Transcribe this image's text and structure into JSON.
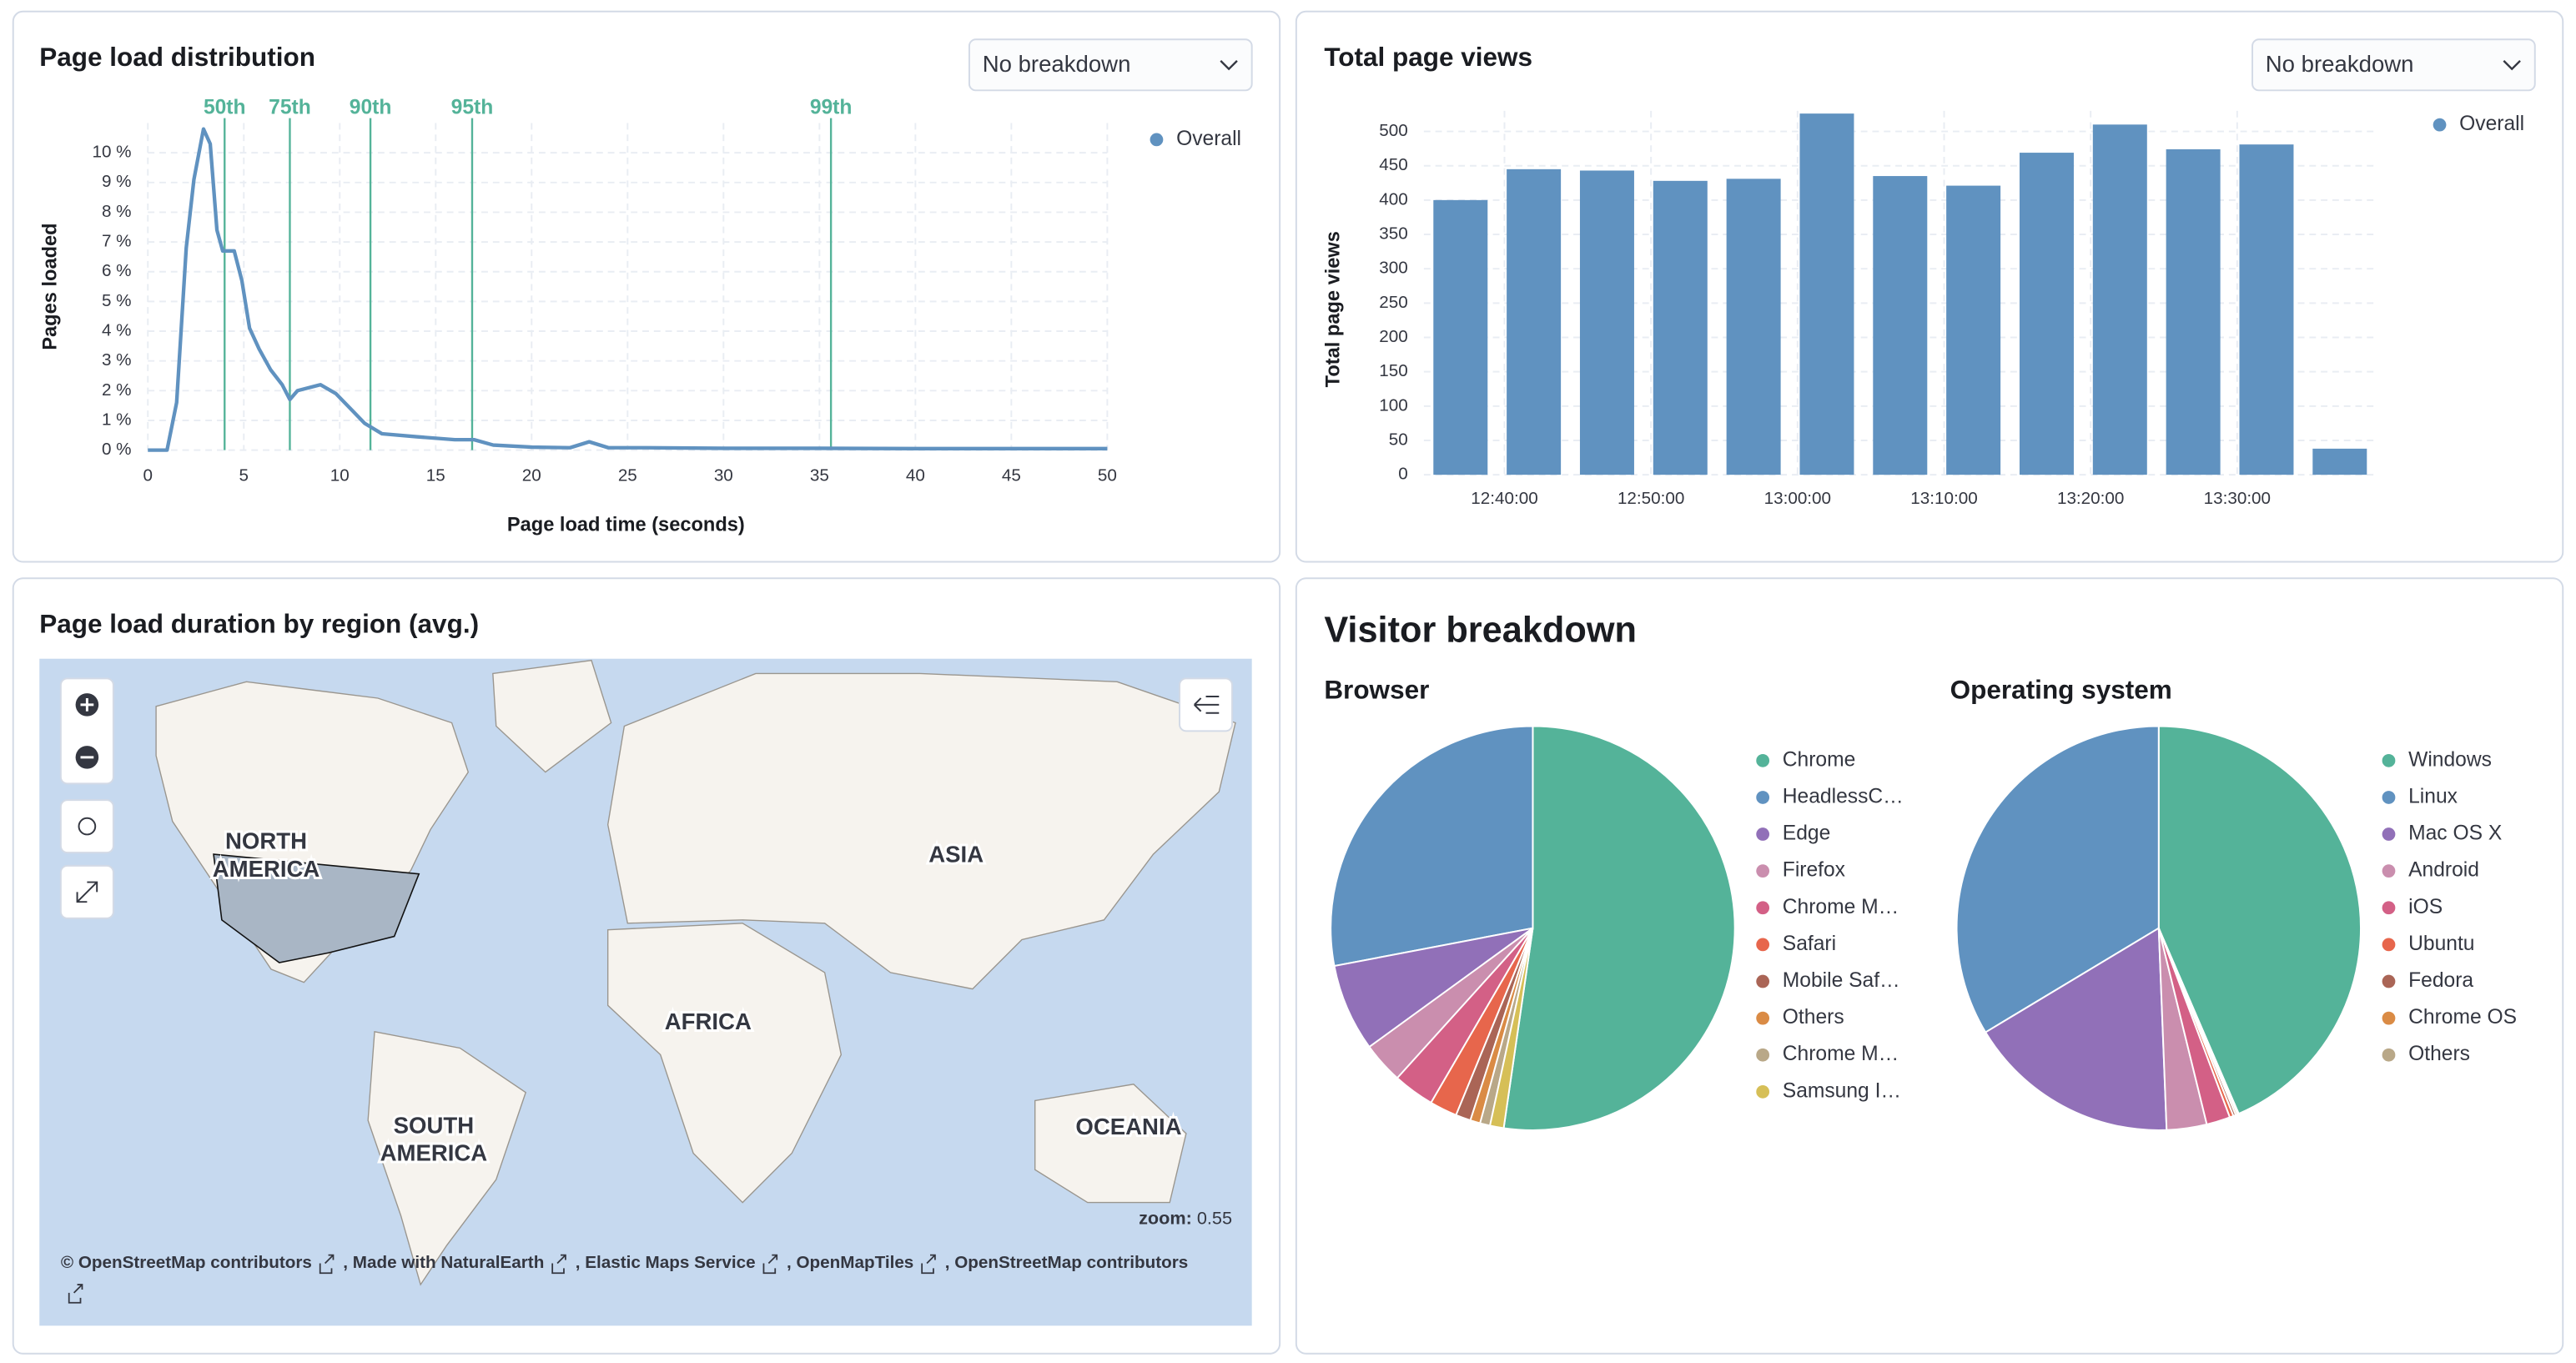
{
  "chart_data": [
    {
      "type": "line",
      "title": "Page load distribution",
      "breakdown_select": "No breakdown",
      "x_label": "Page load time (seconds)",
      "y_label": "Pages loaded",
      "x": [
        0,
        1,
        1.5,
        2,
        2.4,
        2.9,
        3.25,
        3.6,
        3.9,
        4.5,
        4.9,
        5.3,
        5.8,
        6.4,
        7,
        7.4,
        7.8,
        9,
        9.8,
        10.7,
        11.3,
        12.2,
        14,
        16,
        17,
        18,
        20,
        22,
        23,
        24,
        26,
        30,
        35,
        40,
        45,
        50
      ],
      "series": [
        {
          "name": "Overall",
          "color": "#6092c0",
          "values": [
            0,
            0,
            1.6,
            6.8,
            9.1,
            10.8,
            10.3,
            7.4,
            6.7,
            6.7,
            5.7,
            4.1,
            3.4,
            2.7,
            2.2,
            1.7,
            2.0,
            2.2,
            1.9,
            1.3,
            0.9,
            0.55,
            0.45,
            0.35,
            0.35,
            0.17,
            0.1,
            0.08,
            0.28,
            0.08,
            0.08,
            0.06,
            0.06,
            0.05,
            0.05,
            0.05
          ]
        }
      ],
      "annotations": [
        {
          "label": "50th",
          "x": 4.0
        },
        {
          "label": "75th",
          "x": 7.4
        },
        {
          "label": "90th",
          "x": 11.6
        },
        {
          "label": "95th",
          "x": 16.9
        },
        {
          "label": "99th",
          "x": 35.6
        }
      ],
      "annotation_color": "#54b399",
      "xlim": [
        0,
        50
      ],
      "xticks": [
        0,
        5,
        10,
        15,
        20,
        25,
        30,
        35,
        40,
        45,
        50
      ],
      "ylim": [
        0,
        11
      ],
      "yticks": [
        {
          "value": 0,
          "label": "0 %"
        },
        {
          "value": 1,
          "label": "1 %"
        },
        {
          "value": 2,
          "label": "2 %"
        },
        {
          "value": 3,
          "label": "3 %"
        },
        {
          "value": 4,
          "label": "4 %"
        },
        {
          "value": 5,
          "label": "5 %"
        },
        {
          "value": 6,
          "label": "6 %"
        },
        {
          "value": 7,
          "label": "7 %"
        },
        {
          "value": 8,
          "label": "8 %"
        },
        {
          "value": 9,
          "label": "9 %"
        },
        {
          "value": 10,
          "label": "10 %"
        }
      ],
      "grid": true,
      "legend": "top-right"
    },
    {
      "type": "bar",
      "title": "Total page views",
      "breakdown_select": "No breakdown",
      "y_label": "Total page views",
      "categories": [
        null,
        null,
        null,
        null,
        null,
        null,
        null,
        null,
        null,
        null,
        null,
        null,
        null
      ],
      "series": [
        {
          "name": "Overall",
          "color": "#6092c0",
          "values": [
            400,
            445,
            443,
            428,
            431,
            526,
            435,
            421,
            469,
            510,
            474,
            481,
            38
          ]
        }
      ],
      "xticks": [
        {
          "value": 0.6,
          "label": "12:40:00"
        },
        {
          "value": 2.6,
          "label": "12:50:00"
        },
        {
          "value": 4.6,
          "label": "13:00:00"
        },
        {
          "value": 6.6,
          "label": "13:10:00"
        },
        {
          "value": 8.6,
          "label": "13:20:00"
        },
        {
          "value": 10.6,
          "label": "13:30:00"
        }
      ],
      "ylim": [
        0,
        530
      ],
      "yticks": [
        0,
        50,
        100,
        150,
        200,
        250,
        300,
        350,
        400,
        450,
        500
      ],
      "grid": true,
      "legend": "top-right"
    },
    {
      "type": "pie",
      "title": "Browser",
      "categories": [
        "Chrome",
        "HeadlessC…",
        "Edge",
        "Firefox",
        "Chrome M…",
        "Safari",
        "Mobile Saf…",
        "Others",
        "Chrome M…",
        "Samsung I…"
      ],
      "values": [
        52.3,
        28,
        7,
        3.3,
        3.3,
        2.2,
        1.2,
        0.8,
        0.8,
        1.1
      ],
      "colors": [
        "#54b399",
        "#6092c0",
        "#9170b8",
        "#ca8eae",
        "#d36086",
        "#e7664c",
        "#aa6556",
        "#da8b45",
        "#b9a888",
        "#d6bf57"
      ]
    },
    {
      "type": "pie",
      "title": "Operating system",
      "categories": [
        "Windows",
        "Linux",
        "Mac OS X",
        "Android",
        "iOS",
        "Ubuntu",
        "Fedora",
        "Chrome OS",
        "Others"
      ],
      "values": [
        43.5,
        33.6,
        17,
        3.2,
        1.9,
        0.3,
        0.2,
        0.15,
        0.1
      ],
      "colors": [
        "#54b399",
        "#6092c0",
        "#9170b8",
        "#ca8eae",
        "#d36086",
        "#e7664c",
        "#aa6556",
        "#da8b45",
        "#b9a888"
      ]
    }
  ],
  "panels": {
    "visitor_breakdown_title": "Visitor breakdown"
  },
  "map": {
    "title": "Page load duration by region (avg.)",
    "regions": [
      [
        "NORTH",
        "AMERICA"
      ],
      [
        "ASIA"
      ],
      [
        "AFRICA"
      ],
      [
        "SOUTH",
        "AMERICA"
      ],
      [
        "OCEANIA"
      ]
    ],
    "zoom_label": "zoom:",
    "zoom": 0.55,
    "attribution": [
      "© OpenStreetMap contributors",
      ", Made with NaturalEarth",
      ", Elastic Maps Service",
      ", OpenMapTiles",
      ", OpenStreetMap contributors"
    ]
  }
}
